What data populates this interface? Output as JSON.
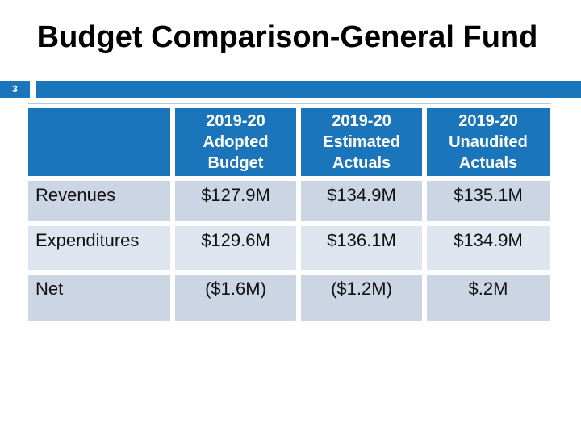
{
  "slide": {
    "title": "Budget Comparison-General Fund",
    "page_number": "3"
  },
  "table": {
    "column_headers": [
      "",
      "2019-20\nAdopted\nBudget",
      "2019-20\nEstimated\nActuals",
      "2019-20\nUnaudited\nActuals"
    ],
    "rows": [
      {
        "label": "Revenues",
        "values": [
          "$127.9M",
          "$134.9M",
          "$135.1M"
        ]
      },
      {
        "label": "Expenditures",
        "values": [
          "$129.6M",
          "$136.1M",
          "$134.9M"
        ]
      },
      {
        "label": "Net",
        "values": [
          "($1.6M)",
          "($1.2M)",
          "$.2M"
        ]
      }
    ]
  },
  "colors": {
    "accent_blue": "#1b75bb",
    "band_dark": "#ccd5e4",
    "band_light": "#dfe5ee",
    "header_text": "#ffffff",
    "title_text": "#000000"
  }
}
